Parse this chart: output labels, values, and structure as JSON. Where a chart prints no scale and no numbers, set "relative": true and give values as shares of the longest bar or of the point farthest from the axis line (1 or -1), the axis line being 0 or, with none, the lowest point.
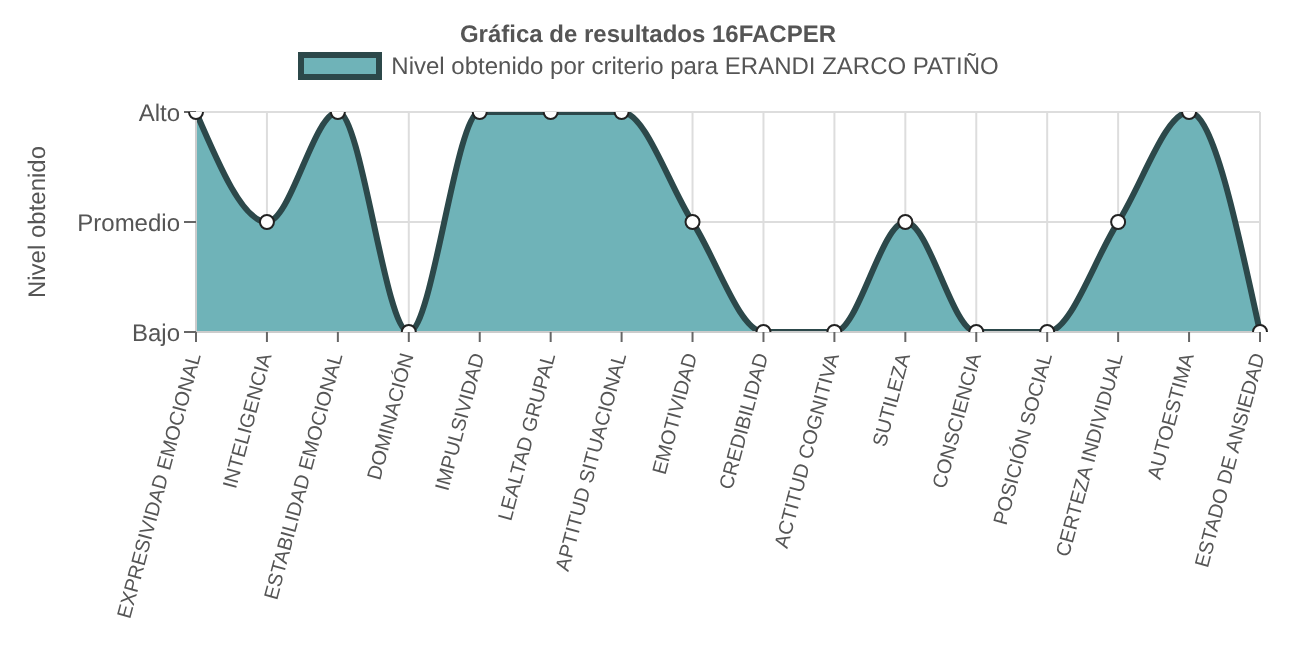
{
  "chart_data": {
    "type": "area",
    "title": "Gráfica de resultados 16FACPER",
    "ylabel": "Nivel obtenido",
    "categories": [
      "EXPRESIVIDAD EMOCIONAL",
      "INTELIGENCIA",
      "ESTABILIDAD EMOCIONAL",
      "DOMINACIÓN",
      "IMPULSIVIDAD",
      "LEALTAD GRUPAL",
      "APTITUD SITUACIONAL",
      "EMOTIVIDAD",
      "CREDIBILIDAD",
      "ACTITUD COGNITIVA",
      "SUTILEZA",
      "CONSCIENCIA",
      "POSICIÓN SOCIAL",
      "CERTEZA INDIVIDUAL",
      "AUTOESTIMA",
      "ESTADO DE ANSIEDAD"
    ],
    "series": [
      {
        "name": "Nivel obtenido por criterio para ERANDI ZARCO PATIÑO",
        "color": "#6fb3b8",
        "values": [
          1,
          0.5,
          1,
          0,
          1,
          1,
          1,
          0.5,
          0,
          0,
          0.5,
          0,
          0,
          0.5,
          1,
          0
        ]
      }
    ],
    "relative": true,
    "annotations": [
      "Alto",
      "Promedio",
      "Bajo"
    ],
    "grid": true,
    "legend": "top",
    "marker": "circle"
  }
}
